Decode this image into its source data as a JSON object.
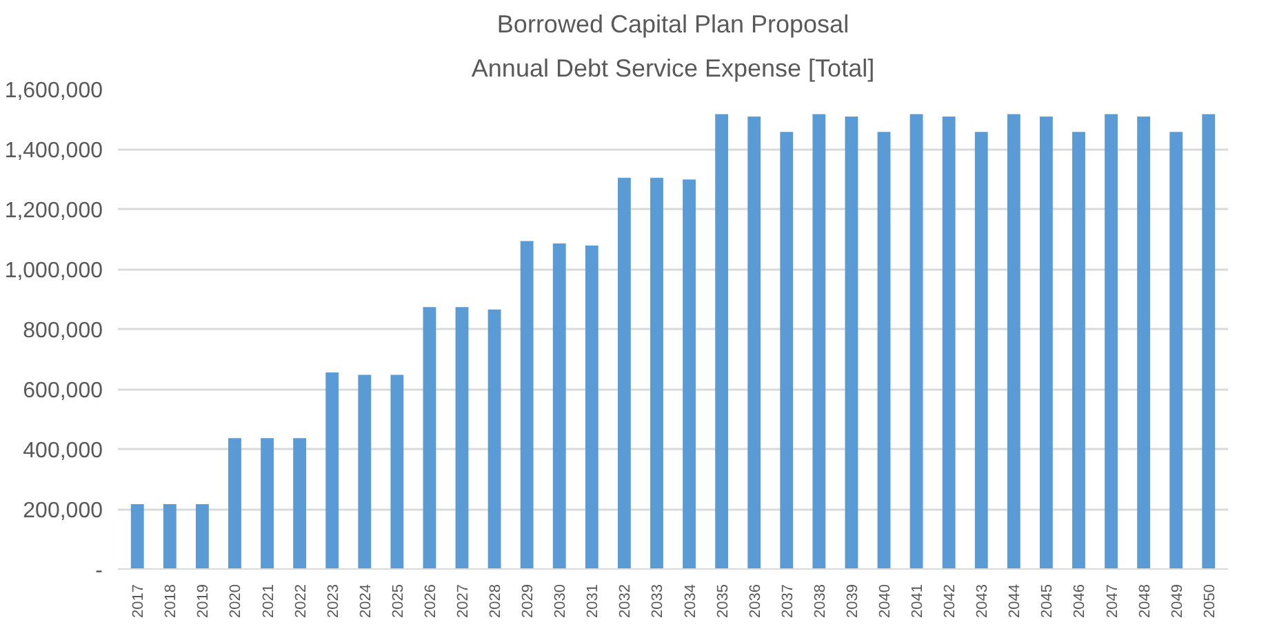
{
  "chart_data": {
    "type": "bar",
    "title": "Borrowed Capital Plan Proposal",
    "subtitle": "Annual Debt Service Expense [Total]",
    "categories": [
      "2017",
      "2018",
      "2019",
      "2020",
      "2021",
      "2022",
      "2023",
      "2024",
      "2025",
      "2026",
      "2027",
      "2028",
      "2029",
      "2030",
      "2031",
      "2032",
      "2033",
      "2034",
      "2035",
      "2036",
      "2037",
      "2038",
      "2039",
      "2040",
      "2041",
      "2042",
      "2043",
      "2044",
      "2045",
      "2046",
      "2047",
      "2048",
      "2049",
      "2050"
    ],
    "values": [
      216000,
      216000,
      216000,
      436000,
      436000,
      436000,
      655000,
      647000,
      647000,
      873000,
      873000,
      865000,
      1093000,
      1085000,
      1078000,
      1304000,
      1304000,
      1298000,
      1516000,
      1508000,
      1457000,
      1516000,
      1508000,
      1457000,
      1516000,
      1508000,
      1457000,
      1516000,
      1508000,
      1457000,
      1516000,
      1508000,
      1457000,
      1516000
    ],
    "color": "#5b9bd5",
    "ylim": [
      0,
      1600000
    ],
    "yticks": [
      {
        "value": 0,
        "label": "-"
      },
      {
        "value": 200000,
        "label": "200,000"
      },
      {
        "value": 400000,
        "label": "400,000"
      },
      {
        "value": 600000,
        "label": "600,000"
      },
      {
        "value": 800000,
        "label": "800,000"
      },
      {
        "value": 1000000,
        "label": "1,000,000"
      },
      {
        "value": 1200000,
        "label": "1,200,000"
      },
      {
        "value": 1400000,
        "label": "1,400,000"
      },
      {
        "value": 1600000,
        "label": "1,600,000"
      }
    ],
    "grid": "y"
  }
}
